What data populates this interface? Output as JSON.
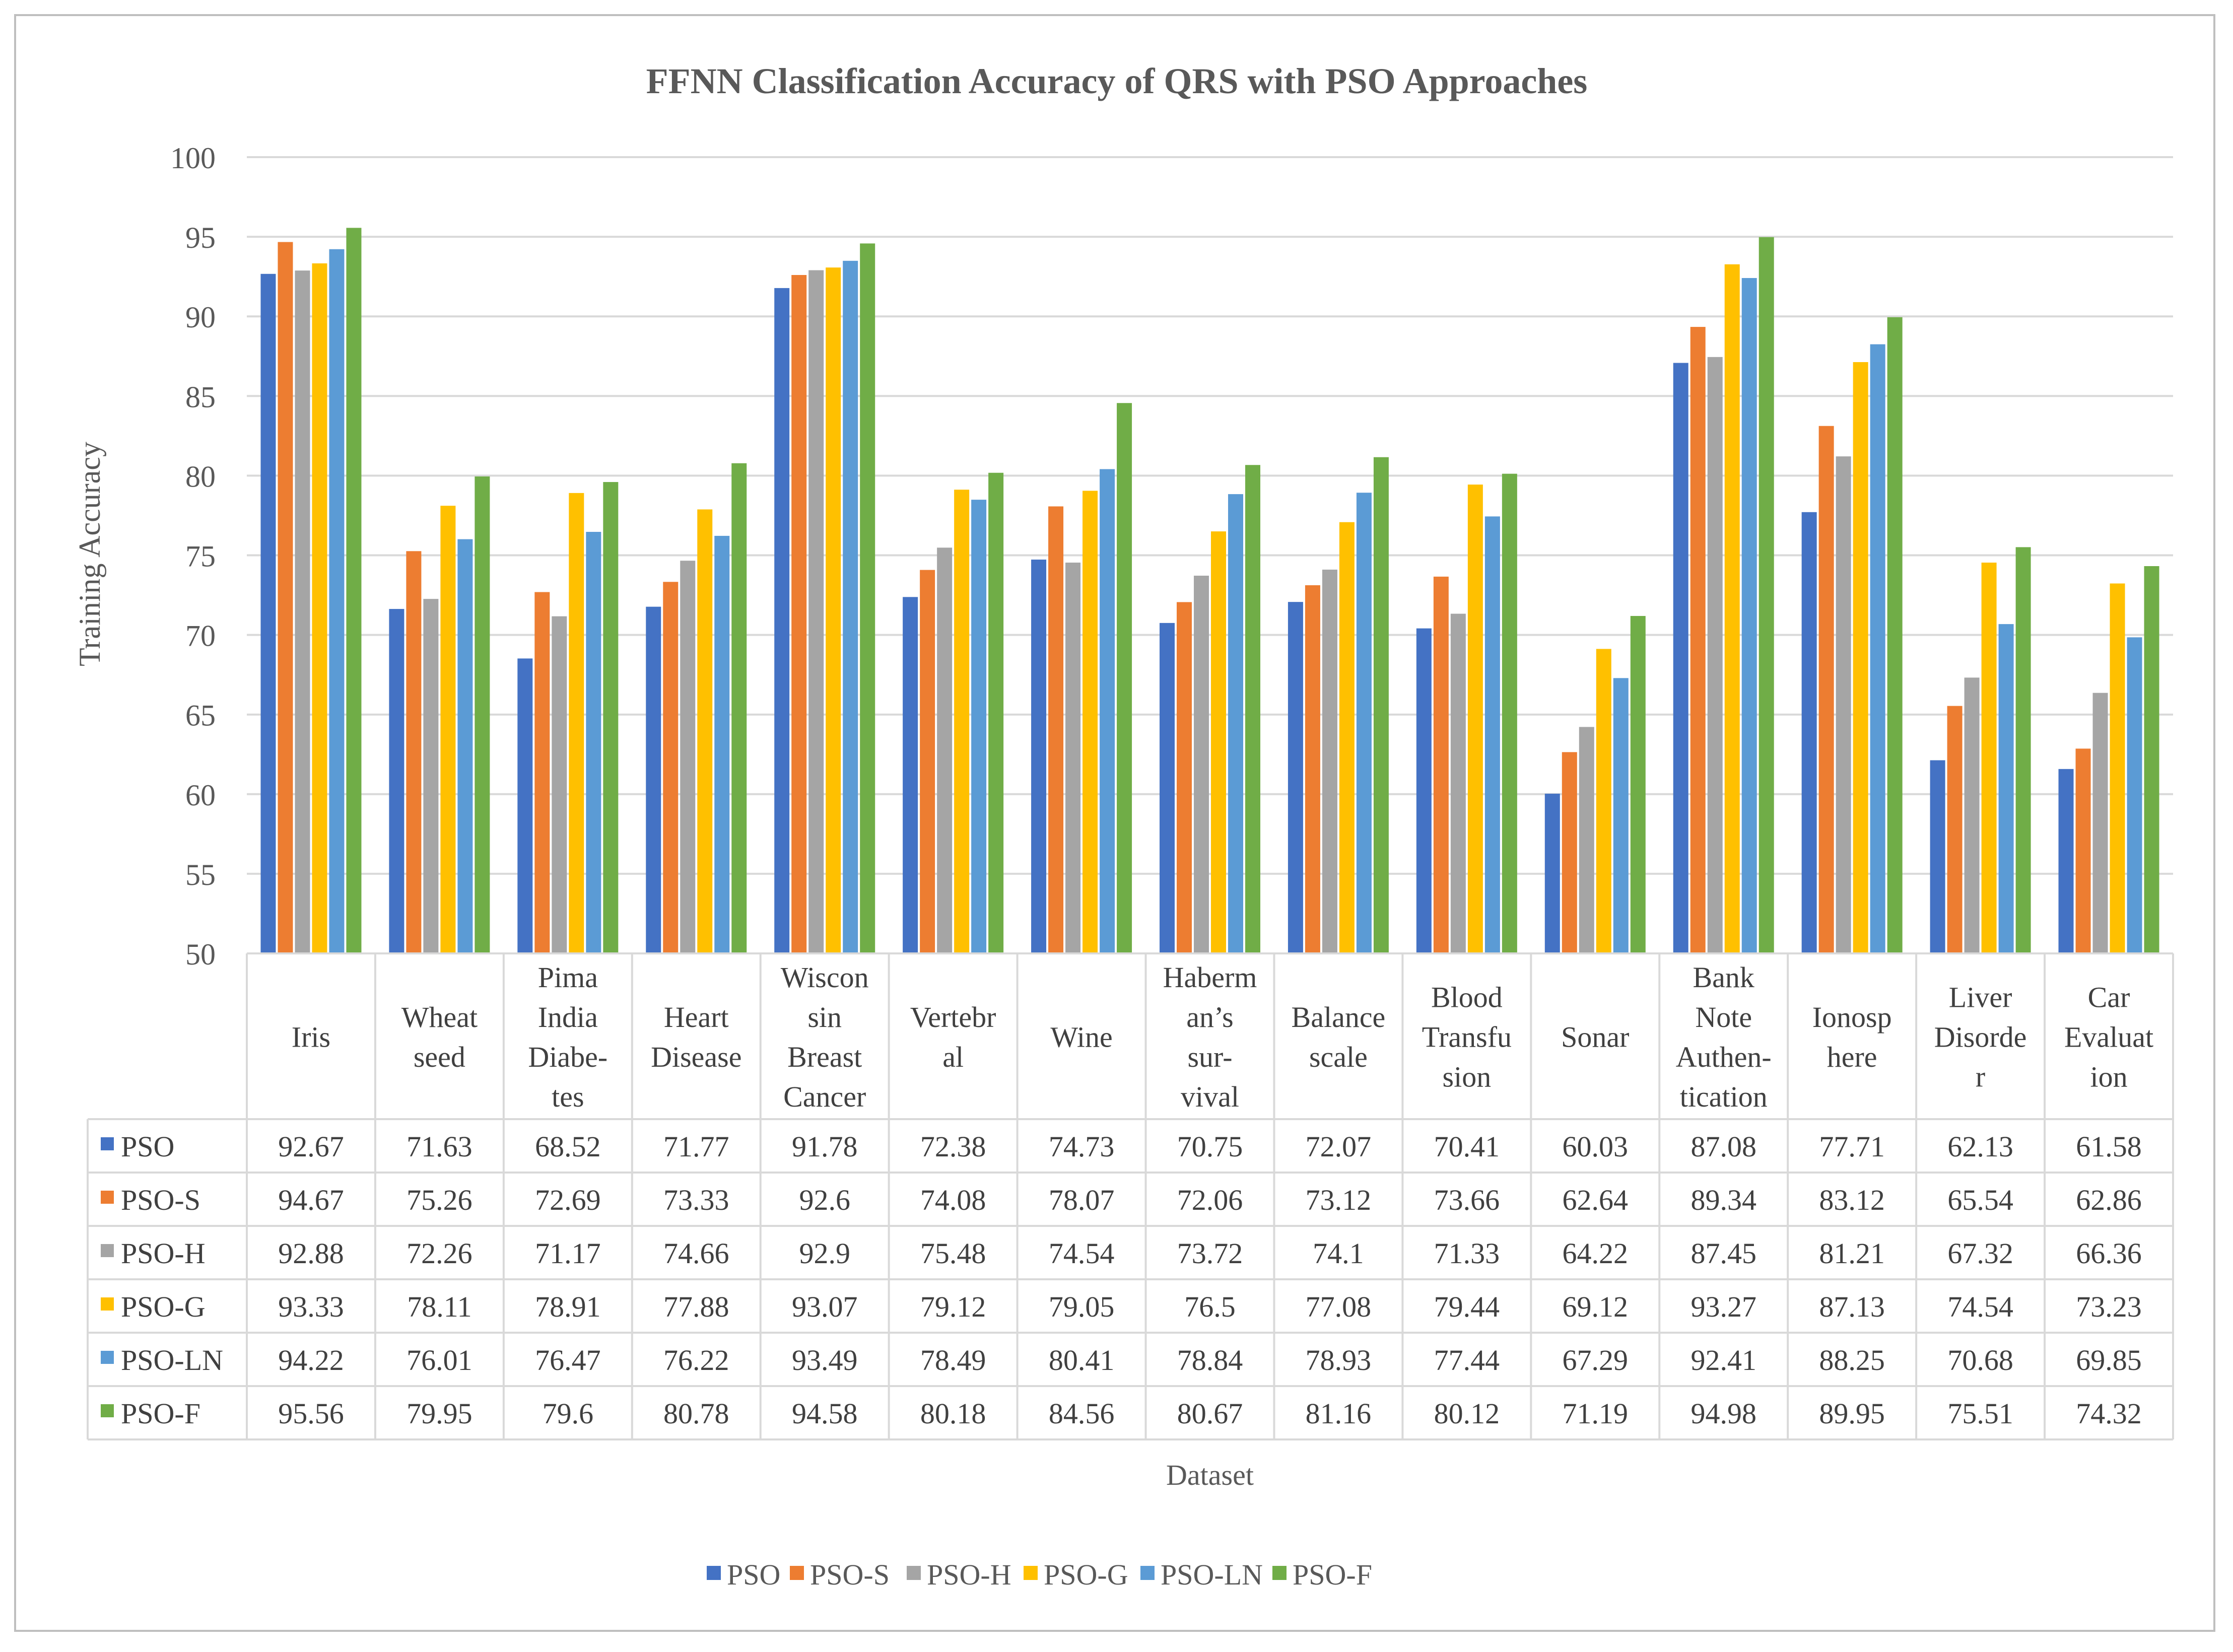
{
  "chart_data": {
    "type": "bar",
    "title": "FFNN Classification Accuracy of QRS with PSO Approaches",
    "xlabel": "Dataset",
    "ylabel": "Training Accuracy",
    "ylim": [
      50,
      100
    ],
    "ytick_step": 5,
    "grid": true,
    "legend_position": "bottom",
    "categories": [
      [
        "Iris"
      ],
      [
        "Wheat",
        "seed"
      ],
      [
        "Pima",
        "India",
        "Diabe-",
        "tes"
      ],
      [
        "Heart",
        "Disease"
      ],
      [
        "Wiscon",
        "sin",
        "Breast",
        "Cancer"
      ],
      [
        "Vertebr",
        "al"
      ],
      [
        "Wine"
      ],
      [
        "Haberm",
        "an’s",
        "sur-",
        "vival"
      ],
      [
        "Balance",
        "scale"
      ],
      [
        "Blood",
        "Transfu",
        "sion"
      ],
      [
        "Sonar"
      ],
      [
        "Bank",
        "Note",
        "Authen-",
        "tication"
      ],
      [
        "Ionosp",
        "here"
      ],
      [
        "Liver",
        "Disorde",
        "r"
      ],
      [
        "Car",
        "Evaluat",
        "ion"
      ]
    ],
    "series": [
      {
        "name": "PSO",
        "color": "#4472c4",
        "values": [
          "92.67",
          "71.63",
          "68.52",
          "71.77",
          "91.78",
          "72.38",
          "74.73",
          "70.75",
          "72.07",
          "70.41",
          "60.03",
          "87.08",
          "77.71",
          "62.13",
          "61.58"
        ]
      },
      {
        "name": "PSO-S",
        "color": "#ed7d31",
        "values": [
          "94.67",
          "75.26",
          "72.69",
          "73.33",
          "92.6",
          "74.08",
          "78.07",
          "72.06",
          "73.12",
          "73.66",
          "62.64",
          "89.34",
          "83.12",
          "65.54",
          "62.86"
        ]
      },
      {
        "name": "PSO-H",
        "color": "#a5a5a5",
        "values": [
          "92.88",
          "72.26",
          "71.17",
          "74.66",
          "92.9",
          "75.48",
          "74.54",
          "73.72",
          "74.1",
          "71.33",
          "64.22",
          "87.45",
          "81.21",
          "67.32",
          "66.36"
        ]
      },
      {
        "name": "PSO-G",
        "color": "#ffc000",
        "values": [
          "93.33",
          "78.11",
          "78.91",
          "77.88",
          "93.07",
          "79.12",
          "79.05",
          "76.5",
          "77.08",
          "79.44",
          "69.12",
          "93.27",
          "87.13",
          "74.54",
          "73.23"
        ]
      },
      {
        "name": "PSO-LN",
        "color": "#5b9bd5",
        "values": [
          "94.22",
          "76.01",
          "76.47",
          "76.22",
          "93.49",
          "78.49",
          "80.41",
          "78.84",
          "78.93",
          "77.44",
          "67.29",
          "92.41",
          "88.25",
          "70.68",
          "69.85"
        ]
      },
      {
        "name": "PSO-F",
        "color": "#70ad47",
        "values": [
          "95.56",
          "79.95",
          "79.6",
          "80.78",
          "94.58",
          "80.18",
          "84.56",
          "80.67",
          "81.16",
          "80.12",
          "71.19",
          "94.98",
          "89.95",
          "75.51",
          "74.32"
        ]
      }
    ]
  }
}
